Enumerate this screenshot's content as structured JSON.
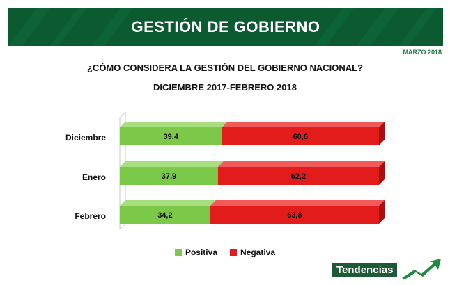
{
  "header": {
    "title": "GESTIÓN DE GOBIERNO",
    "date": "MARZO 2018"
  },
  "question": "¿CÓMO CONSIDERA LA GESTIÓN DEL GOBIERNO NACIONAL?",
  "period": "DICIEMBRE 2017-FEBRERO 2018",
  "brand": "Tendencias",
  "colors": {
    "positive": "#7cc94a",
    "negative": "#e21b1b",
    "header_bg": "#0b5a30"
  },
  "chart_data": {
    "type": "bar",
    "orientation": "horizontal",
    "stacked": true,
    "categories": [
      "Diciembre",
      "Enero",
      "Febrero"
    ],
    "series": [
      {
        "name": "Positiva",
        "values": [
          39.4,
          37.9,
          34.2
        ],
        "labels": [
          "39,4",
          "37,9",
          "34,2"
        ]
      },
      {
        "name": "Negativa",
        "values": [
          60.6,
          62.2,
          63.8
        ],
        "labels": [
          "60,6",
          "62,2",
          "63,8"
        ]
      }
    ],
    "title": "",
    "xlabel": "",
    "ylabel": "",
    "legend": "bottom"
  }
}
